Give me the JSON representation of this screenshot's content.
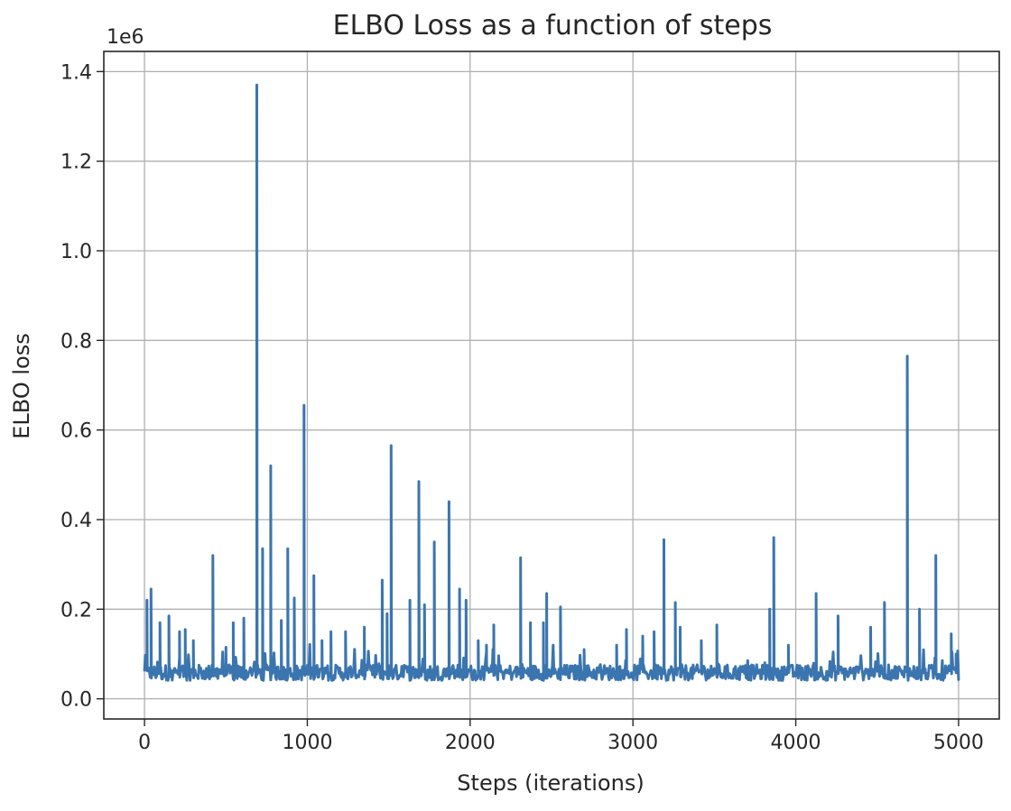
{
  "chart_data": {
    "type": "line",
    "title": "ELBO Loss as a function of steps",
    "xlabel": "Steps (iterations)",
    "ylabel": "ELBO loss",
    "y_offset_label": "1e6",
    "xlim": [
      -250,
      5250
    ],
    "ylim": [
      -0.045,
      1.445
    ],
    "x_ticks": [
      0,
      1000,
      2000,
      3000,
      4000,
      5000
    ],
    "x_tick_labels": [
      "0",
      "1000",
      "2000",
      "3000",
      "4000",
      "5000"
    ],
    "y_ticks": [
      0.0,
      0.2,
      0.4,
      0.6,
      0.8,
      1.0,
      1.2,
      1.4
    ],
    "y_tick_labels": [
      "0.0",
      "0.2",
      "0.4",
      "0.6",
      "0.8",
      "1.0",
      "1.2",
      "1.4"
    ],
    "grid": true,
    "colors": {
      "series": "#3b75af",
      "grid": "#b0b0b0",
      "axes": "#262626"
    },
    "series": [
      {
        "x_range": [
          0,
          5000
        ],
        "baseline": 0.055,
        "noise": 0.022,
        "spikes": [
          [
            15,
            0.22
          ],
          [
            40,
            0.245
          ],
          [
            95,
            0.17
          ],
          [
            150,
            0.185
          ],
          [
            215,
            0.15
          ],
          [
            250,
            0.155
          ],
          [
            300,
            0.13
          ],
          [
            420,
            0.32
          ],
          [
            500,
            0.115
          ],
          [
            545,
            0.17
          ],
          [
            610,
            0.18
          ],
          [
            690,
            1.37
          ],
          [
            725,
            0.335
          ],
          [
            775,
            0.52
          ],
          [
            840,
            0.175
          ],
          [
            880,
            0.335
          ],
          [
            920,
            0.225
          ],
          [
            980,
            0.655
          ],
          [
            1040,
            0.275
          ],
          [
            1090,
            0.13
          ],
          [
            1145,
            0.15
          ],
          [
            1235,
            0.15
          ],
          [
            1350,
            0.16
          ],
          [
            1460,
            0.265
          ],
          [
            1490,
            0.19
          ],
          [
            1515,
            0.565
          ],
          [
            1630,
            0.22
          ],
          [
            1685,
            0.485
          ],
          [
            1720,
            0.21
          ],
          [
            1780,
            0.35
          ],
          [
            1870,
            0.44
          ],
          [
            1935,
            0.245
          ],
          [
            1975,
            0.22
          ],
          [
            2050,
            0.13
          ],
          [
            2100,
            0.12
          ],
          [
            2145,
            0.165
          ],
          [
            2310,
            0.315
          ],
          [
            2370,
            0.17
          ],
          [
            2450,
            0.17
          ],
          [
            2470,
            0.235
          ],
          [
            2555,
            0.205
          ],
          [
            2700,
            0.11
          ],
          [
            2900,
            0.12
          ],
          [
            2960,
            0.155
          ],
          [
            3060,
            0.14
          ],
          [
            3130,
            0.15
          ],
          [
            3190,
            0.355
          ],
          [
            3260,
            0.215
          ],
          [
            3290,
            0.16
          ],
          [
            3420,
            0.13
          ],
          [
            3515,
            0.165
          ],
          [
            3840,
            0.2
          ],
          [
            3865,
            0.36
          ],
          [
            3955,
            0.12
          ],
          [
            4125,
            0.235
          ],
          [
            4260,
            0.185
          ],
          [
            4460,
            0.16
          ],
          [
            4545,
            0.215
          ],
          [
            4685,
            0.765
          ],
          [
            4760,
            0.2
          ],
          [
            4860,
            0.32
          ],
          [
            4955,
            0.145
          ],
          [
            4985,
            0.1
          ]
        ]
      }
    ]
  }
}
